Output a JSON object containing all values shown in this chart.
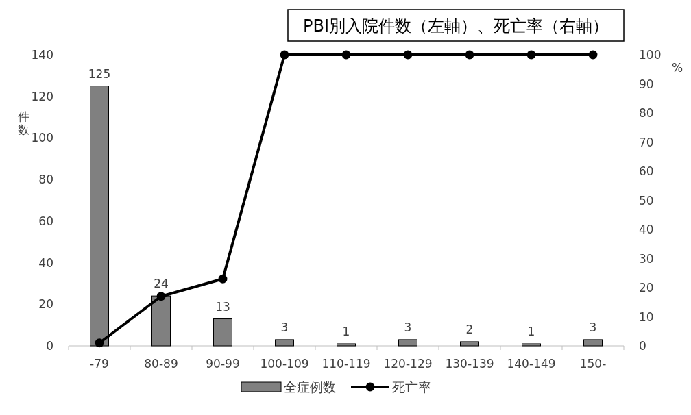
{
  "chart_data": {
    "type": "bar",
    "title": "PBI別入院件数（左軸）、死亡率（右軸）",
    "ylabel": "件数",
    "y2label": "%",
    "categories": [
      "-79",
      "80-89",
      "90-99",
      "100-109",
      "110-119",
      "120-129",
      "130-139",
      "140-149",
      "150-"
    ],
    "series": [
      {
        "name": "全症例数",
        "color": "#808080",
        "values": [
          125,
          24,
          13,
          3,
          1,
          3,
          2,
          1,
          3
        ],
        "value_labels": [
          "125",
          "24",
          "13",
          "3",
          "1",
          "3",
          "2",
          "1",
          "3"
        ]
      },
      {
        "name": "死亡率",
        "type": "line",
        "axis": "y2",
        "color": "#000000",
        "values": [
          1,
          17,
          23,
          100,
          100,
          100,
          100,
          100,
          100
        ]
      }
    ],
    "ylim": [
      0,
      140
    ],
    "yticks": [
      0,
      20,
      40,
      60,
      80,
      100,
      120,
      140
    ],
    "y2lim": [
      0,
      100
    ],
    "y2ticks": [
      0,
      10,
      20,
      30,
      40,
      50,
      60,
      70,
      80,
      90,
      100
    ],
    "grid": false,
    "legend": "bottom",
    "marker": "circle",
    "line_style": "solid"
  }
}
